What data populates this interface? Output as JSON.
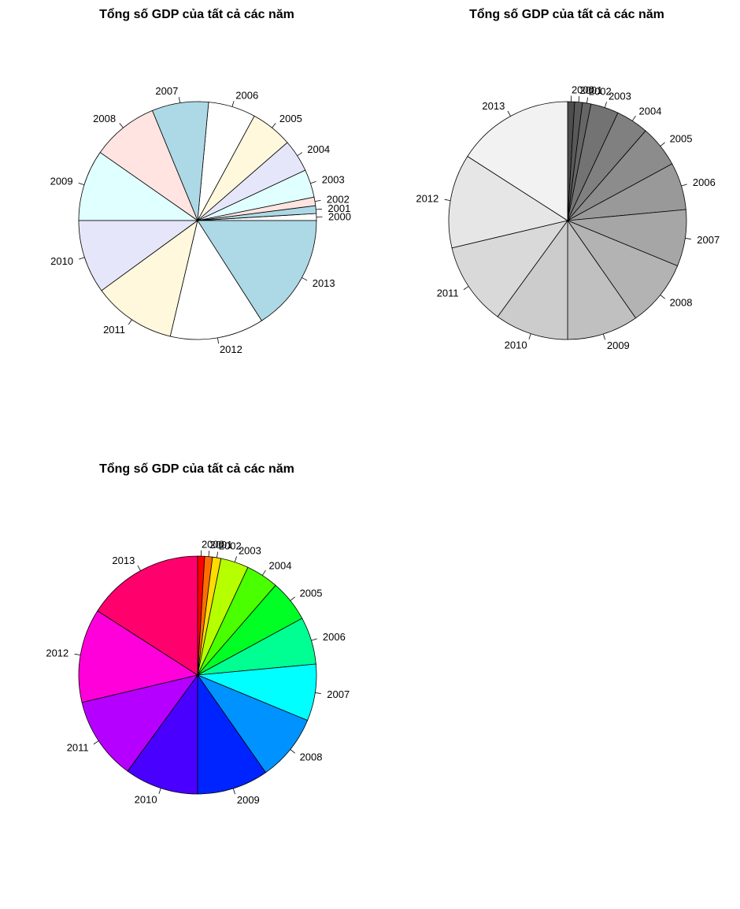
{
  "chart_data": [
    {
      "type": "pie",
      "title": "Tổng số GDP của tất cả các năm",
      "start": "right",
      "direction": "counterclockwise",
      "categories": [
        "2000",
        "2001",
        "2002",
        "2003",
        "2004",
        "2005",
        "2006",
        "2007",
        "2008",
        "2009",
        "2010",
        "2011",
        "2012",
        "2013"
      ],
      "values": [
        0.9,
        1.0,
        1.1,
        3.6,
        4.2,
        5.4,
        6.1,
        7.3,
        8.6,
        9.2,
        9.5,
        10.7,
        12.1,
        15.1
      ],
      "colors": [
        "#FFFFFF",
        "#ADD8E6",
        "#FFE4E1",
        "#E0FFFF",
        "#E6E6FA",
        "#FFF8DC",
        "#FFFFFF",
        "#ADD8E6",
        "#FFE4E1",
        "#E0FFFF",
        "#E6E6FA",
        "#FFF8DC",
        "#FFFFFF",
        "#ADD8E6"
      ]
    },
    {
      "type": "pie",
      "title": "Tổng số GDP của tất cả các năm",
      "start": "top",
      "direction": "clockwise",
      "categories": [
        "2000",
        "2001",
        "2002",
        "2003",
        "2004",
        "2005",
        "2006",
        "2007",
        "2008",
        "2009",
        "2010",
        "2011",
        "2012",
        "2013"
      ],
      "values": [
        0.9,
        1.0,
        1.1,
        3.6,
        4.2,
        5.4,
        6.1,
        7.3,
        8.6,
        9.2,
        9.5,
        10.7,
        12.1,
        15.1
      ],
      "colors": [
        "#4D4D4D",
        "#595959",
        "#666666",
        "#737373",
        "#808080",
        "#8C8C8C",
        "#999999",
        "#A6A6A6",
        "#B3B3B3",
        "#C0C0C0",
        "#CCCCCC",
        "#D9D9D9",
        "#E6E6E6",
        "#F2F2F2"
      ]
    },
    {
      "type": "pie",
      "title": "Tổng số GDP của tất cả các năm",
      "start": "top",
      "direction": "clockwise",
      "categories": [
        "2000",
        "2001",
        "2002",
        "2003",
        "2004",
        "2005",
        "2006",
        "2007",
        "2008",
        "2009",
        "2010",
        "2011",
        "2012",
        "2013"
      ],
      "values": [
        0.9,
        1.0,
        1.1,
        3.6,
        4.2,
        5.4,
        6.1,
        7.3,
        8.6,
        9.2,
        9.5,
        10.7,
        12.1,
        15.1
      ],
      "colors": [
        "#FF0000",
        "#FF6D00",
        "#FFDB00",
        "#B6FF00",
        "#49FF00",
        "#00FF24",
        "#00FF92",
        "#00FFFF",
        "#0092FF",
        "#0024FF",
        "#4900FF",
        "#B600FF",
        "#FF00DB",
        "#FF006D"
      ]
    }
  ]
}
